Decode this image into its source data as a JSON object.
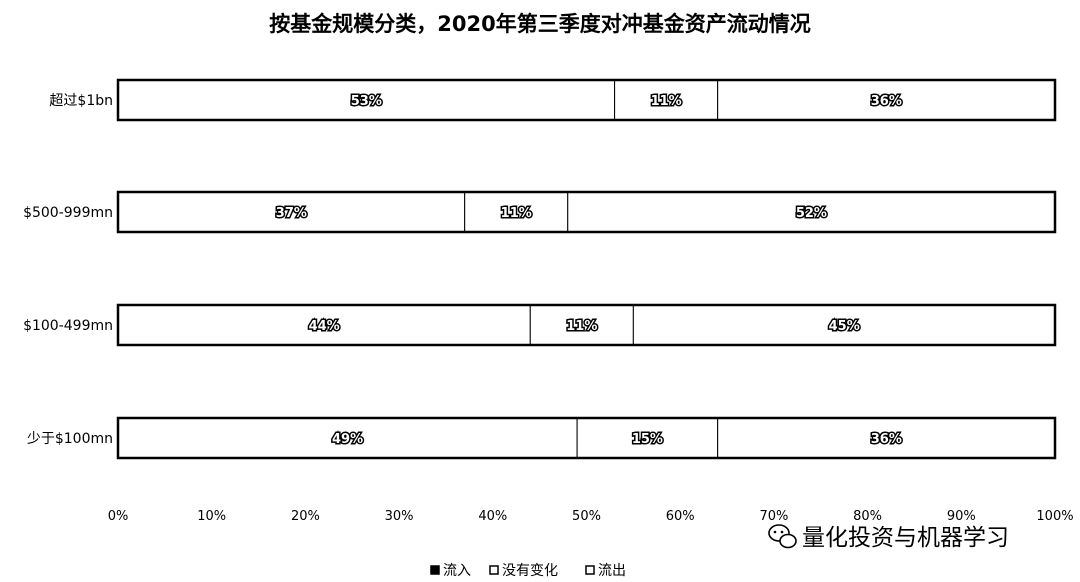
{
  "chart_data": {
    "type": "bar",
    "orientation": "horizontal",
    "stacked": true,
    "percent": true,
    "title": "按基金规模分类，2020年第三季度对冲基金资产流动情况",
    "categories": [
      "超过$1bn",
      "$500-999mn",
      "$100-499mn",
      "少于$100mn"
    ],
    "series": [
      {
        "name": "流入",
        "values": [
          53,
          37,
          44,
          49
        ],
        "labels": [
          "53%",
          "37%",
          "44%",
          "49%"
        ]
      },
      {
        "name": "没有变化",
        "values": [
          11,
          11,
          11,
          15
        ],
        "labels": [
          "11%",
          "11%",
          "11%",
          "15%"
        ]
      },
      {
        "name": "流出",
        "values": [
          36,
          52,
          45,
          36
        ],
        "labels": [
          "36%",
          "52%",
          "45%",
          "36%"
        ]
      }
    ],
    "xlim": [
      0,
      100
    ],
    "xticks": [
      0,
      10,
      20,
      30,
      40,
      50,
      60,
      70,
      80,
      90,
      100
    ],
    "xtick_labels": [
      "0%",
      "10%",
      "20%",
      "30%",
      "40%",
      "50%",
      "60%",
      "70%",
      "80%",
      "90%",
      "100%"
    ],
    "legend_position": "bottom",
    "grid": false
  },
  "colors": {
    "fill": "#ffffff",
    "stroke": "#000000"
  },
  "watermark": {
    "text": "量化投资与机器学习",
    "icon": "wechat-icon"
  }
}
